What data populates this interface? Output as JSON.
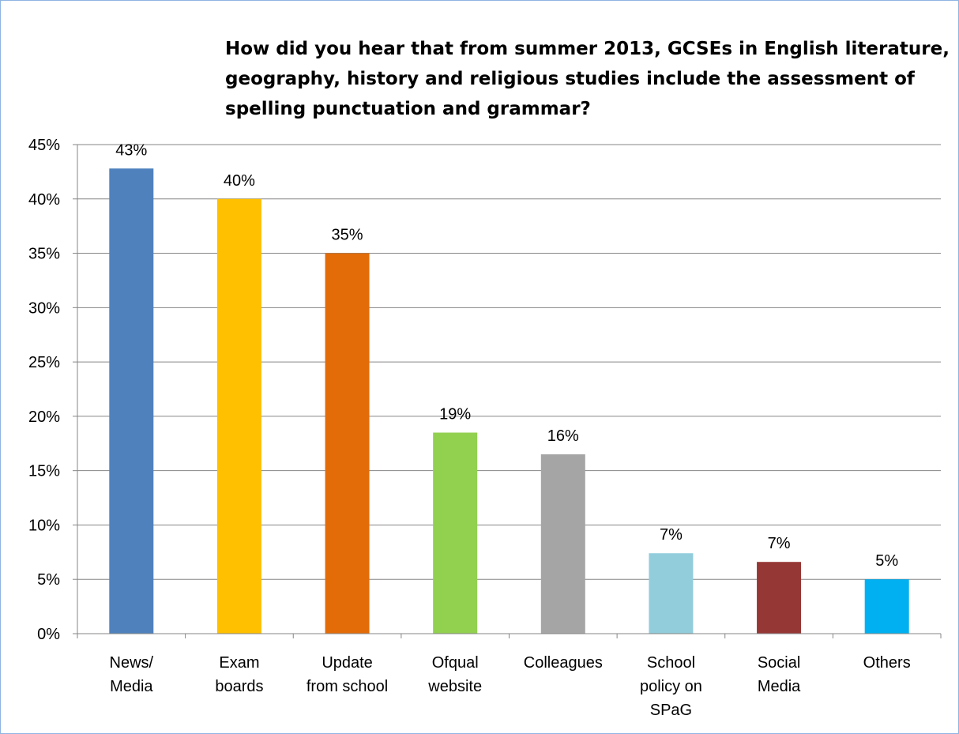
{
  "chart_data": {
    "type": "bar",
    "title": "How did you hear that from summer 2013, GCSEs in English literature, geography, history and religious studies include the assessment of spelling punctuation and grammar?",
    "categories": [
      [
        "News/",
        "Media"
      ],
      [
        "Exam",
        "boards"
      ],
      [
        "Update",
        "from school"
      ],
      [
        "Ofqual",
        "website"
      ],
      [
        "Colleagues"
      ],
      [
        "School",
        "policy on",
        "SPaG"
      ],
      [
        "Social",
        "Media"
      ],
      [
        "Others"
      ]
    ],
    "values": [
      42.8,
      40.0,
      35.0,
      18.5,
      16.5,
      7.4,
      6.6,
      5.0
    ],
    "data_labels": [
      "43%",
      "40%",
      "35%",
      "19%",
      "16%",
      "7%",
      "7%",
      "5%"
    ],
    "colors": [
      "#4f81bd",
      "#ffc000",
      "#e36c09",
      "#92d050",
      "#a5a5a5",
      "#92cddc",
      "#953735",
      "#00b0f0"
    ],
    "ylim": [
      0,
      45
    ],
    "yticks": [
      0,
      5,
      10,
      15,
      20,
      25,
      30,
      35,
      40,
      45
    ],
    "ytick_labels": [
      "0%",
      "5%",
      "10%",
      "15%",
      "20%",
      "25%",
      "30%",
      "35%",
      "40%",
      "45%"
    ],
    "xlabel": "",
    "ylabel": "",
    "grid": true,
    "legend": "none"
  }
}
